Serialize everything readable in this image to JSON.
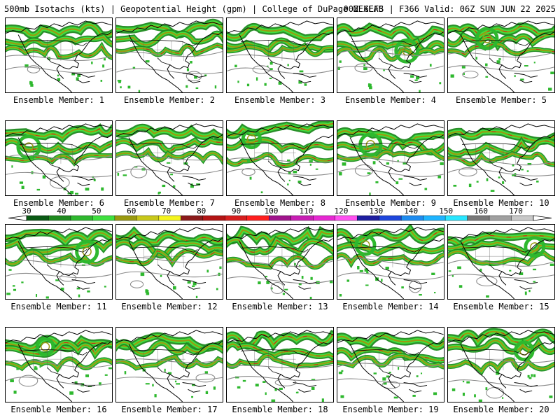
{
  "header": {
    "title_left": "500mb Isotachs (kts) | Geopotential Height (gpm) | College of DuPage NEXLAB",
    "title_right": "00Z GEFS | F366 Valid: 06Z SUN JUN 22 2025"
  },
  "colorbar": {
    "ticks": [
      "30",
      "40",
      "50",
      "60",
      "70",
      "80",
      "90",
      "100",
      "110",
      "120",
      "130",
      "140",
      "150",
      "160",
      "170"
    ],
    "colors": [
      "#0a5a14",
      "#1f8a1f",
      "#2eb82e",
      "#3fe03f",
      "#9a9a10",
      "#c8c81a",
      "#f5f51e",
      "#8b1a1a",
      "#b31414",
      "#d61e1e",
      "#ff1e1e",
      "#a0148c",
      "#c81eb4",
      "#e628d2",
      "#ff50f0",
      "#1e1ea0",
      "#1e46dc",
      "#1e8cf0",
      "#1eb4ff",
      "#28e6ff",
      "#787878",
      "#a0a0a0",
      "#c8c8c8"
    ]
  },
  "panels": [
    {
      "label": "Ensemble Member: 1"
    },
    {
      "label": "Ensemble Member: 2"
    },
    {
      "label": "Ensemble Member: 3"
    },
    {
      "label": "Ensemble Member: 4"
    },
    {
      "label": "Ensemble Member: 5"
    },
    {
      "label": "Ensemble Member: 6"
    },
    {
      "label": "Ensemble Member: 7"
    },
    {
      "label": "Ensemble Member: 8"
    },
    {
      "label": "Ensemble Member: 9"
    },
    {
      "label": "Ensemble Member: 10"
    },
    {
      "label": "Ensemble Member: 11"
    },
    {
      "label": "Ensemble Member: 12"
    },
    {
      "label": "Ensemble Member: 13"
    },
    {
      "label": "Ensemble Member: 14"
    },
    {
      "label": "Ensemble Member: 15"
    },
    {
      "label": "Ensemble Member: 16"
    },
    {
      "label": "Ensemble Member: 17"
    },
    {
      "label": "Ensemble Member: 18"
    },
    {
      "label": "Ensemble Member: 19"
    },
    {
      "label": "Ensemble Member: 20"
    }
  ]
}
